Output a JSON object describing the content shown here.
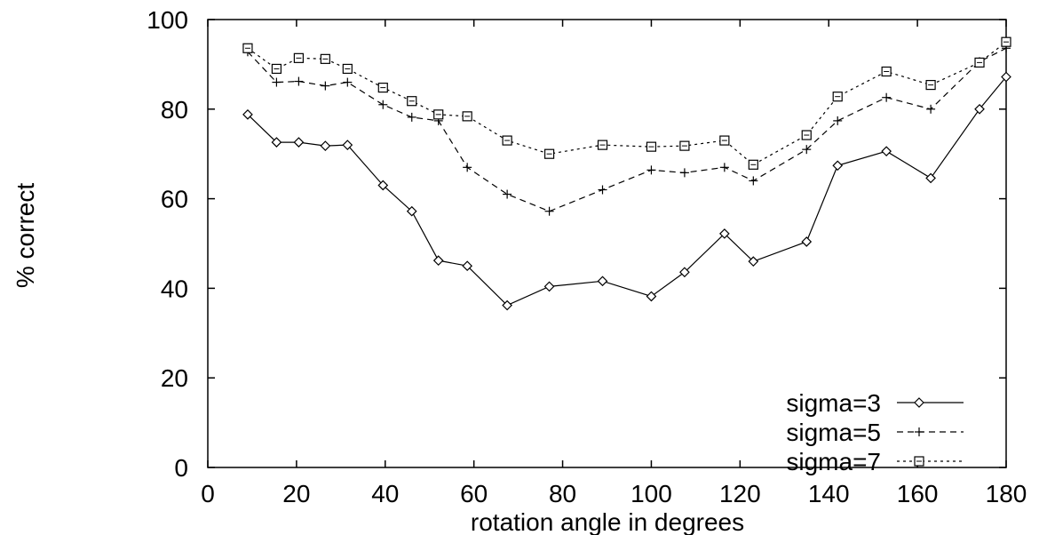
{
  "chart_data": {
    "type": "line",
    "title": "",
    "xlabel": "rotation angle in degrees",
    "ylabel": "% correct",
    "xlim": [
      0,
      180
    ],
    "ylim": [
      0,
      100
    ],
    "xticks": [
      0,
      20,
      40,
      60,
      80,
      100,
      120,
      140,
      160,
      180
    ],
    "yticks": [
      0,
      20,
      40,
      60,
      80,
      100
    ],
    "grid": false,
    "legend_position": "bottom-right",
    "series": [
      {
        "name": "sigma=3",
        "marker": "diamond",
        "dash": "solid",
        "x": [
          9,
          15.5,
          20.5,
          26.5,
          31.5,
          39.5,
          46,
          52,
          58.5,
          67.5,
          77,
          89,
          100,
          107.5,
          116.5,
          123,
          135,
          142,
          153,
          163,
          174,
          180
        ],
        "y": [
          78.8,
          72.6,
          72.6,
          71.8,
          72,
          63,
          57.2,
          46.2,
          45,
          36.2,
          40.4,
          41.6,
          38.2,
          43.6,
          52.2,
          46,
          50.4,
          67.4,
          70.6,
          64.6,
          80,
          87.2
        ]
      },
      {
        "name": "sigma=5",
        "marker": "plus",
        "dash": "dashed",
        "x": [
          9,
          15.5,
          20.5,
          26.5,
          31.5,
          39.5,
          46,
          52,
          58.5,
          67.5,
          77,
          89,
          100,
          107.5,
          116.5,
          123,
          135,
          142,
          153,
          163,
          174,
          180
        ],
        "y": [
          92.8,
          86,
          86.2,
          85.2,
          86,
          81,
          78.2,
          77.4,
          67,
          61,
          57.2,
          62,
          66.4,
          65.8,
          67,
          64,
          71,
          77.4,
          82.6,
          80,
          90.6,
          93.6
        ]
      },
      {
        "name": "sigma=7",
        "marker": "square",
        "dash": "dotted",
        "x": [
          9,
          15.5,
          20.5,
          26.5,
          31.5,
          39.5,
          46,
          52,
          58.5,
          67.5,
          77,
          89,
          100,
          107.5,
          116.5,
          123,
          135,
          142,
          153,
          163,
          174,
          180
        ],
        "y": [
          93.6,
          89,
          91.4,
          91.2,
          89,
          84.8,
          81.8,
          78.8,
          78.4,
          73,
          70,
          72,
          71.6,
          71.8,
          73,
          67.6,
          74.2,
          82.8,
          88.4,
          85.4,
          90.4,
          95
        ]
      }
    ]
  }
}
